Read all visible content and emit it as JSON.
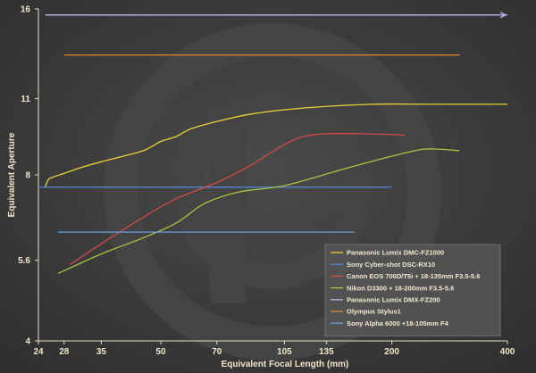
{
  "chart_data": {
    "type": "line",
    "title": "",
    "xlabel": "Equivalent Focal Length (mm)",
    "ylabel": "Equivalent Aperture",
    "x_scale": "log",
    "y_scale": "log",
    "xlim": [
      24,
      400
    ],
    "ylim": [
      4,
      16
    ],
    "x_ticks": [
      24,
      28,
      35,
      50,
      70,
      105,
      135,
      200,
      400
    ],
    "y_ticks": [
      4,
      5.6,
      8,
      11,
      16
    ],
    "grid": "none",
    "legend_position": "bottom-right",
    "series": [
      {
        "name": "Panasonic Lumix DMC-FZ1000",
        "color": "#e8d238",
        "points": [
          [
            25,
            7.6
          ],
          [
            25.5,
            7.85
          ],
          [
            26.5,
            7.95
          ],
          [
            28,
            8.05
          ],
          [
            31,
            8.25
          ],
          [
            35,
            8.45
          ],
          [
            40,
            8.65
          ],
          [
            45,
            8.85
          ],
          [
            48,
            9.05
          ],
          [
            50,
            9.2
          ],
          [
            55,
            9.4
          ],
          [
            60,
            9.7
          ],
          [
            70,
            10.0
          ],
          [
            85,
            10.3
          ],
          [
            105,
            10.5
          ],
          [
            135,
            10.65
          ],
          [
            180,
            10.75
          ],
          [
            250,
            10.75
          ],
          [
            400,
            10.75
          ]
        ]
      },
      {
        "name": "Sony Cyber-shot DSC-RX10",
        "color": "#4c8ad8",
        "points": [
          [
            24,
            7.6
          ],
          [
            200,
            7.6
          ]
        ]
      },
      {
        "name": "Canon EOS 700D/T5i + 18-135mm F3.5-5.6",
        "color": "#d04a48",
        "points": [
          [
            29,
            5.5
          ],
          [
            35,
            6.0
          ],
          [
            45,
            6.7
          ],
          [
            55,
            7.25
          ],
          [
            70,
            7.75
          ],
          [
            85,
            8.3
          ],
          [
            100,
            8.9
          ],
          [
            115,
            9.35
          ],
          [
            135,
            9.5
          ],
          [
            170,
            9.5
          ],
          [
            216,
            9.45
          ]
        ]
      },
      {
        "name": "Nikon D3300 + 18-200mm F3.5-5.6",
        "color": "#a8c440",
        "points": [
          [
            27,
            5.3
          ],
          [
            35,
            5.75
          ],
          [
            45,
            6.15
          ],
          [
            55,
            6.55
          ],
          [
            65,
            7.1
          ],
          [
            80,
            7.45
          ],
          [
            105,
            7.65
          ],
          [
            150,
            8.2
          ],
          [
            200,
            8.65
          ],
          [
            240,
            8.9
          ],
          [
            270,
            8.9
          ],
          [
            300,
            8.85
          ]
        ]
      },
      {
        "name": "Panasonic Lumix DMX-FZ200",
        "color": "#c2b8ec",
        "points": [
          [
            25,
            15.6
          ],
          [
            400,
            15.6
          ]
        ]
      },
      {
        "name": "Olympus Stylus1",
        "color": "#e08a30",
        "points": [
          [
            28,
            13.2
          ],
          [
            300,
            13.2
          ]
        ]
      },
      {
        "name": "Sony Alpha 6000 +18-105mm  F4",
        "color": "#6a9ee0",
        "points": [
          [
            27,
            6.3
          ],
          [
            160,
            6.3
          ]
        ]
      }
    ]
  }
}
